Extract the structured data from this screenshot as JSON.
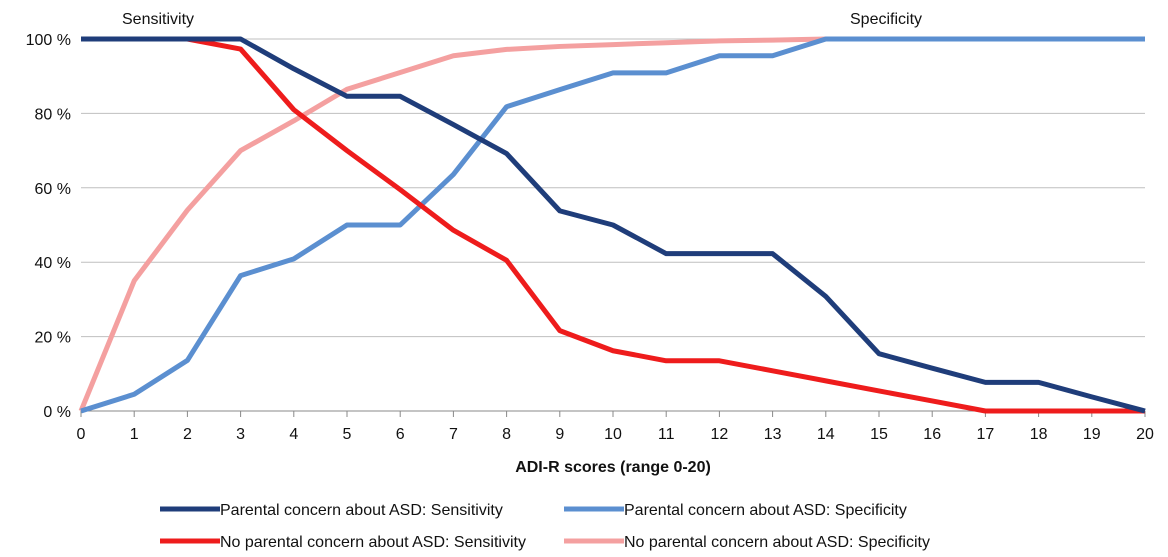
{
  "chart_data": {
    "type": "line",
    "annotations": {
      "left": "Sensitivity",
      "right": "Specificity"
    },
    "xlabel": "ADI-R scores (range 0-20)",
    "ylabel": "",
    "x": [
      0,
      1,
      2,
      3,
      4,
      5,
      6,
      7,
      8,
      9,
      10,
      11,
      12,
      13,
      14,
      15,
      16,
      17,
      18,
      19,
      20
    ],
    "xlim": [
      0,
      20
    ],
    "ylim": [
      0,
      100
    ],
    "y_ticks": [
      0,
      20,
      40,
      60,
      80,
      100
    ],
    "y_tick_labels": [
      "0 %",
      "20 %",
      "40 %",
      "60 %",
      "80 %",
      "100 %"
    ],
    "grid": true,
    "legend_position": "bottom",
    "series": [
      {
        "name": "Parental concern about ASD: Sensitivity",
        "color": "#1f3d7a",
        "values": [
          100,
          100,
          100,
          100,
          92,
          84.6,
          84.6,
          77,
          69.2,
          53.8,
          50,
          42.3,
          42.3,
          42.3,
          30.8,
          15.4,
          11.5,
          7.7,
          7.7,
          3.8,
          0
        ]
      },
      {
        "name": "Parental concern about ASD: Specificity",
        "color": "#5b8fd0",
        "values": [
          0,
          4.5,
          13.6,
          36.4,
          40.9,
          50,
          50,
          63.6,
          81.8,
          86.4,
          90.9,
          90.9,
          95.5,
          95.5,
          100,
          100,
          100,
          100,
          100,
          100,
          100
        ]
      },
      {
        "name": "No parental concern about ASD: Sensitivity",
        "color": "#ee1c1c",
        "values": [
          100,
          100,
          100,
          97.3,
          81,
          70,
          59.5,
          48.6,
          40.5,
          21.6,
          16.2,
          13.5,
          13.5,
          10.8,
          8.1,
          5.4,
          2.7,
          0,
          0,
          0,
          0
        ]
      },
      {
        "name": "No parental concern about ASD: Specificity",
        "color": "#f4a0a0",
        "values": [
          0,
          35,
          54,
          70,
          78,
          86.5,
          91,
          95.5,
          97.2,
          98,
          98.5,
          99,
          99.5,
          99.7,
          100,
          100,
          100,
          100,
          100,
          100,
          100
        ]
      }
    ]
  }
}
